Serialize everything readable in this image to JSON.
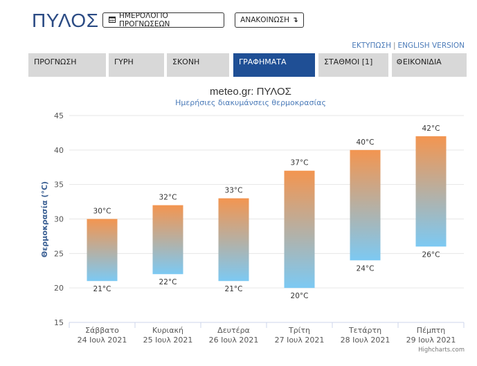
{
  "header": {
    "city": "ΠΥΛΟΣ",
    "calendar_button": "ΗΜΕΡΟΛΟΓΙΟ ΠΡΟΓΝΩΣΕΩΝ",
    "announcement_button": "ΑΝΑΚΟΙΝΩΣΗ",
    "print_link": "ΕΚΤΥΠΩΣΗ",
    "separator": "|",
    "english_link": "ENGLISH VERSION"
  },
  "tabs": [
    {
      "label": "ΠΡΟΓΝΩΣΗ",
      "active": false
    },
    {
      "label": "ΓΥΡΗ",
      "active": false
    },
    {
      "label": "ΣΚΟΝΗ",
      "active": false
    },
    {
      "label": "ΓΡΑΦΗΜΑΤΑ",
      "active": true
    },
    {
      "label": "ΣΤΑΘΜΟΙ [1]",
      "active": false
    },
    {
      "label": "ΕΙΚΟΝΙΔΙΑ",
      "active": false,
      "icon": "gear-icon"
    }
  ],
  "colors": {
    "tab_active": "#1f4f95",
    "tab_inactive": "#d8d8d8",
    "bar_top": "#f39550",
    "bar_bottom": "#7cc9f3",
    "title": "#333333",
    "subtitle": "#4a7ab8",
    "axis_title": "#3a5f93"
  },
  "chart_data": {
    "type": "columnrange",
    "title": "meteo.gr: ΠΥΛΟΣ",
    "subtitle": "Ημερήσιες διακυμάνσεις θερμοκρασίας",
    "ylabel": "Θερμοκρασία (°C)",
    "ylim": [
      15,
      45
    ],
    "yticks": [
      "15",
      "20",
      "25",
      "30",
      "35",
      "40",
      "45"
    ],
    "grid": true,
    "credits": "Highcharts.com",
    "categories": [
      {
        "day": "Σάββατο",
        "date": "24 Ιουλ 2021"
      },
      {
        "day": "Κυριακή",
        "date": "25 Ιουλ 2021"
      },
      {
        "day": "Δευτέρα",
        "date": "26 Ιουλ 2021"
      },
      {
        "day": "Τρίτη",
        "date": "27 Ιουλ 2021"
      },
      {
        "day": "Τετάρτη",
        "date": "28 Ιουλ 2021"
      },
      {
        "day": "Πέμπτη",
        "date": "29 Ιουλ 2021"
      }
    ],
    "series": [
      {
        "low": [
          21,
          22,
          21,
          20,
          24,
          26
        ],
        "high": [
          30,
          32,
          33,
          37,
          40,
          42
        ],
        "low_labels": [
          "21°C",
          "22°C",
          "21°C",
          "20°C",
          "24°C",
          "26°C"
        ],
        "high_labels": [
          "30°C",
          "32°C",
          "33°C",
          "37°C",
          "40°C",
          "42°C"
        ]
      }
    ]
  }
}
